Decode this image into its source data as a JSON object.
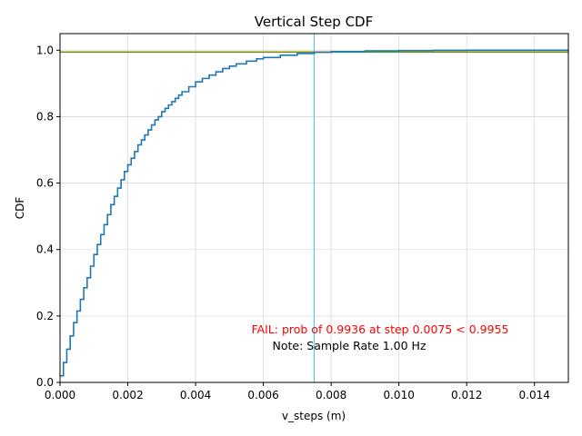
{
  "chart_data": {
    "type": "line",
    "title": "Vertical Step CDF",
    "xlabel": "v_steps (m)",
    "ylabel": "CDF",
    "xlim": [
      0,
      0.015
    ],
    "ylim": [
      0,
      1.05
    ],
    "grid": true,
    "xticks": [
      0,
      0.002,
      0.004,
      0.006,
      0.008,
      0.01,
      0.012,
      0.014
    ],
    "xtick_labels": [
      "0.000",
      "0.002",
      "0.004",
      "0.006",
      "0.008",
      "0.010",
      "0.012",
      "0.014"
    ],
    "yticks": [
      0,
      0.2,
      0.4,
      0.6,
      0.8,
      1.0
    ],
    "ytick_labels": [
      "0.0",
      "0.2",
      "0.4",
      "0.6",
      "0.8",
      "1.0"
    ],
    "series": [
      {
        "color": "#1f77b4",
        "x": [
          0,
          0.0001,
          0.0002,
          0.0003,
          0.0004,
          0.0005,
          0.0006,
          0.0007,
          0.0008,
          0.0009,
          0.001,
          0.0011,
          0.0012,
          0.0013,
          0.0014,
          0.0015,
          0.0016,
          0.0017,
          0.0018,
          0.0019,
          0.002,
          0.0021,
          0.0022,
          0.0023,
          0.0024,
          0.0025,
          0.0026,
          0.0027,
          0.0028,
          0.0029,
          0.003,
          0.0031,
          0.0032,
          0.0033,
          0.0034,
          0.0035,
          0.0036,
          0.0038,
          0.004,
          0.0042,
          0.0044,
          0.0046,
          0.0048,
          0.005,
          0.0052,
          0.0055,
          0.0058,
          0.006,
          0.0065,
          0.007,
          0.0075,
          0.008,
          0.009,
          0.01,
          0.011,
          0.012,
          0.013,
          0.014,
          0.015
        ],
        "y": [
          0.02,
          0.06,
          0.1,
          0.14,
          0.18,
          0.215,
          0.25,
          0.285,
          0.315,
          0.35,
          0.385,
          0.415,
          0.445,
          0.475,
          0.505,
          0.535,
          0.56,
          0.585,
          0.61,
          0.635,
          0.655,
          0.675,
          0.695,
          0.715,
          0.73,
          0.745,
          0.76,
          0.775,
          0.79,
          0.8,
          0.815,
          0.825,
          0.835,
          0.845,
          0.855,
          0.865,
          0.875,
          0.89,
          0.905,
          0.915,
          0.925,
          0.935,
          0.945,
          0.952,
          0.959,
          0.967,
          0.974,
          0.978,
          0.985,
          0.99,
          0.9936,
          0.996,
          0.998,
          0.999,
          0.9995,
          0.9998,
          0.9999,
          1.0,
          1.0
        ]
      }
    ],
    "hlines": [
      {
        "y": 0.9955,
        "color": "#ff7f0e"
      },
      {
        "y": 0.9936,
        "color": "#2ca02c"
      }
    ],
    "vline": {
      "x": 0.0075,
      "color": "#17becf"
    },
    "annotations": {
      "fail": "FAIL: prob of 0.9936 at step 0.0075 < 0.9955",
      "note": "Note: Sample Rate 1.00 Hz"
    }
  }
}
